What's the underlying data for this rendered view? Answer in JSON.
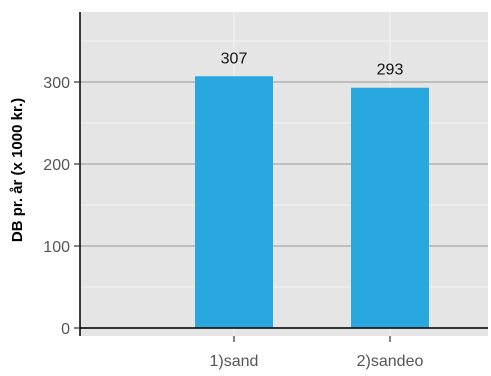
{
  "chart_data": {
    "type": "bar",
    "categories": [
      "1)sand",
      "2)sandeo"
    ],
    "values": [
      307,
      293
    ],
    "data_labels": [
      "307",
      "293"
    ],
    "ylabel": "DB pr. år (x 1000 kr.)",
    "xlabel": "",
    "title": "",
    "ylim": [
      0,
      370
    ],
    "yticks": [
      0,
      100,
      200,
      300
    ],
    "ytick_labels": [
      "0",
      "100",
      "200",
      "300"
    ],
    "grid": true,
    "legend": "none",
    "colors": {
      "bar": "#29A8E0",
      "panel": "#E5E5E5",
      "grid_major": "#A8A8A0",
      "grid_minor": "#F2F2F2",
      "axis": "#000000"
    }
  }
}
